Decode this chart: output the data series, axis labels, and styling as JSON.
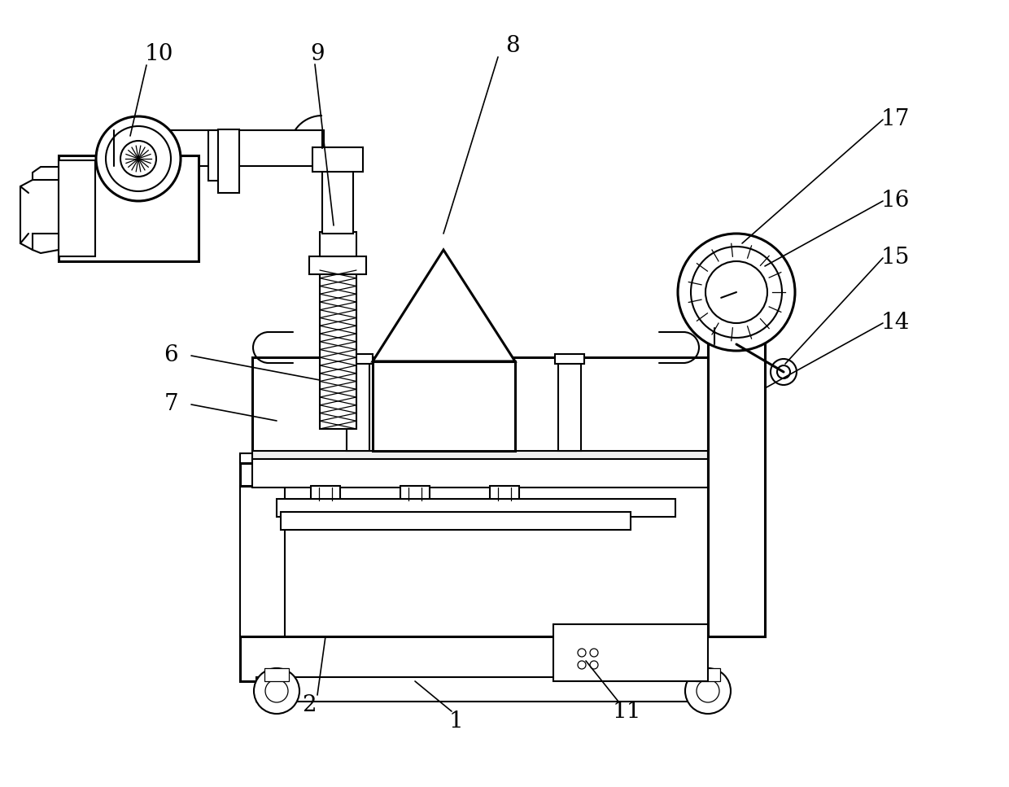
{
  "bg_color": "#ffffff",
  "line_color": "#000000",
  "lw": 1.5,
  "lw_thick": 2.2,
  "lw_thin": 0.9,
  "fig_width": 12.4,
  "fig_height": 9.67,
  "label_fontsize": 20
}
